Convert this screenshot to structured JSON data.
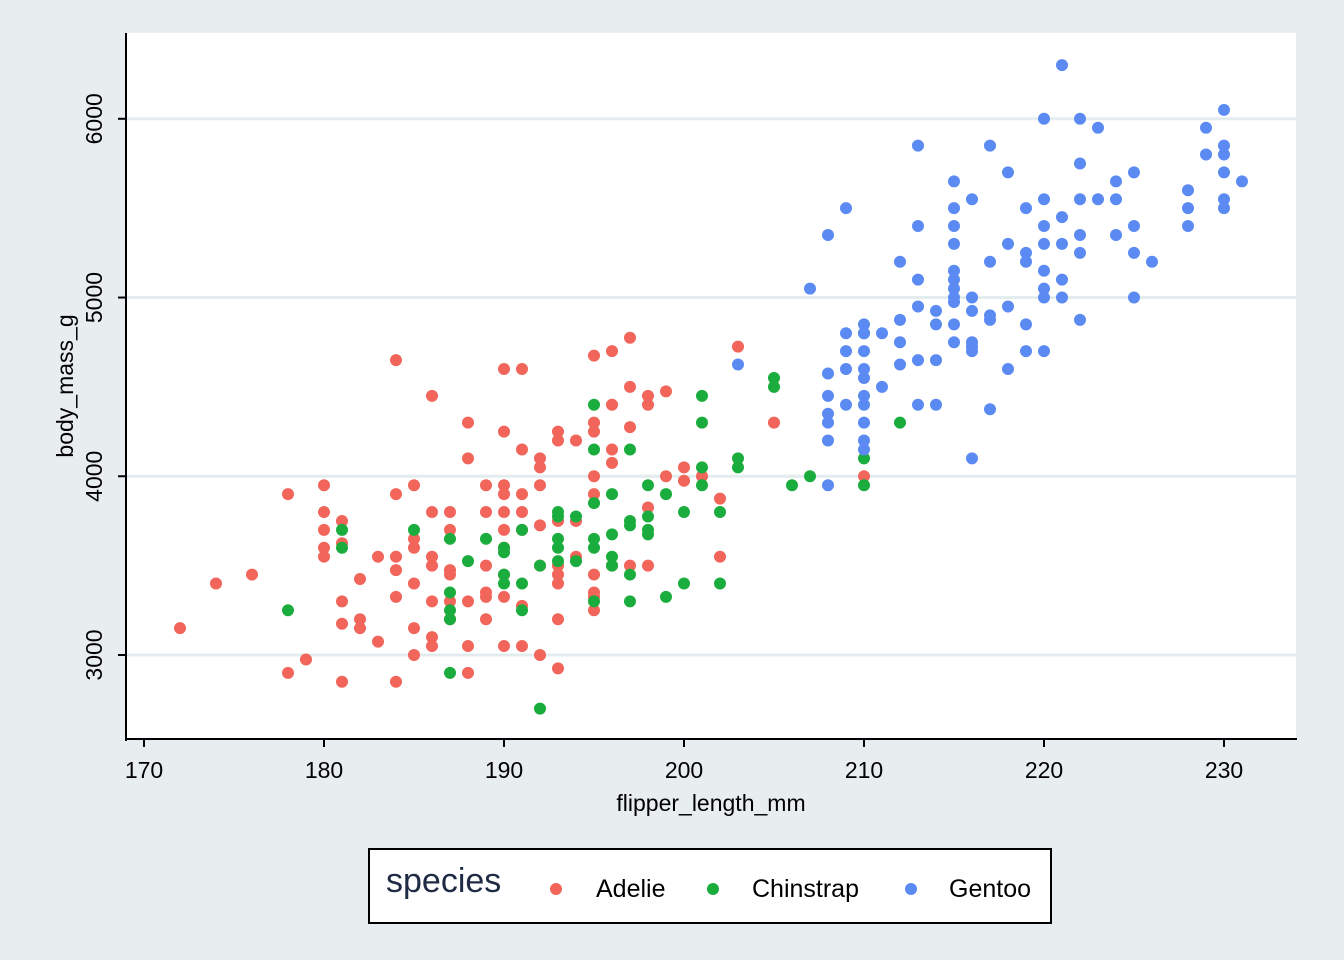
{
  "colors": {
    "Adelie": "#f1655a",
    "Chinstrap": "#1aad3d",
    "Gentoo": "#5b8bf2",
    "background": "#e8eef0",
    "panel": "#ffffff",
    "gridline": "#e3ecef"
  },
  "chart_data": {
    "type": "scatter",
    "xlabel": "flipper_length_mm",
    "ylabel": "body_mass_g",
    "xlim": [
      169,
      234
    ],
    "ylim": [
      2530,
      6480
    ],
    "xticks": [
      170,
      180,
      190,
      200,
      210,
      220,
      230
    ],
    "yticks": [
      3000,
      4000,
      5000,
      6000
    ],
    "grid": "horizontal",
    "legend": {
      "title": "species",
      "placement": "bottom",
      "entries": [
        "Adelie",
        "Chinstrap",
        "Gentoo"
      ]
    },
    "series": [
      {
        "name": "Adelie",
        "points": [
          [
            172,
            3150
          ],
          [
            174,
            3400
          ],
          [
            176,
            3450
          ],
          [
            178,
            3900
          ],
          [
            178,
            2900
          ],
          [
            179,
            2975
          ],
          [
            180,
            3950
          ],
          [
            180,
            3800
          ],
          [
            180,
            3700
          ],
          [
            180,
            3600
          ],
          [
            180,
            3550
          ],
          [
            181,
            3750
          ],
          [
            181,
            3625
          ],
          [
            181,
            3300
          ],
          [
            181,
            3175
          ],
          [
            181,
            2850
          ],
          [
            182,
            3425
          ],
          [
            182,
            3200
          ],
          [
            182,
            3150
          ],
          [
            183,
            3550
          ],
          [
            183,
            3075
          ],
          [
            184,
            4650
          ],
          [
            184,
            3900
          ],
          [
            184,
            3550
          ],
          [
            184,
            3475
          ],
          [
            184,
            3325
          ],
          [
            184,
            2850
          ],
          [
            185,
            3950
          ],
          [
            185,
            3650
          ],
          [
            185,
            3600
          ],
          [
            185,
            3400
          ],
          [
            185,
            3150
          ],
          [
            185,
            3000
          ],
          [
            186,
            4450
          ],
          [
            186,
            3800
          ],
          [
            186,
            3550
          ],
          [
            186,
            3500
          ],
          [
            186,
            3300
          ],
          [
            186,
            3100
          ],
          [
            186,
            3050
          ],
          [
            187,
            3800
          ],
          [
            187,
            3700
          ],
          [
            187,
            3475
          ],
          [
            187,
            3450
          ],
          [
            187,
            3300
          ],
          [
            187,
            3200
          ],
          [
            188,
            4300
          ],
          [
            188,
            4100
          ],
          [
            188,
            3300
          ],
          [
            188,
            3050
          ],
          [
            188,
            2900
          ],
          [
            189,
            3950
          ],
          [
            189,
            3800
          ],
          [
            189,
            3500
          ],
          [
            189,
            3350
          ],
          [
            189,
            3325
          ],
          [
            189,
            3200
          ],
          [
            190,
            4600
          ],
          [
            190,
            4250
          ],
          [
            190,
            3950
          ],
          [
            190,
            3900
          ],
          [
            190,
            3800
          ],
          [
            190,
            3700
          ],
          [
            190,
            3600
          ],
          [
            190,
            3450
          ],
          [
            190,
            3325
          ],
          [
            190,
            3050
          ],
          [
            191,
            4600
          ],
          [
            191,
            4150
          ],
          [
            191,
            3900
          ],
          [
            191,
            3800
          ],
          [
            191,
            3700
          ],
          [
            191,
            3275
          ],
          [
            191,
            3050
          ],
          [
            192,
            4100
          ],
          [
            192,
            4050
          ],
          [
            192,
            3950
          ],
          [
            192,
            3725
          ],
          [
            192,
            3500
          ],
          [
            192,
            3000
          ],
          [
            193,
            4250
          ],
          [
            193,
            4200
          ],
          [
            193,
            3750
          ],
          [
            193,
            3500
          ],
          [
            193,
            3450
          ],
          [
            193,
            3400
          ],
          [
            193,
            3200
          ],
          [
            193,
            2925
          ],
          [
            194,
            4200
          ],
          [
            194,
            3750
          ],
          [
            194,
            3550
          ],
          [
            195,
            4675
          ],
          [
            195,
            4300
          ],
          [
            195,
            4250
          ],
          [
            195,
            4000
          ],
          [
            195,
            3900
          ],
          [
            195,
            3450
          ],
          [
            195,
            3350
          ],
          [
            195,
            3325
          ],
          [
            195,
            3250
          ],
          [
            196,
            4700
          ],
          [
            196,
            4400
          ],
          [
            196,
            4150
          ],
          [
            196,
            4075
          ],
          [
            196,
            3500
          ],
          [
            197,
            4775
          ],
          [
            197,
            4500
          ],
          [
            197,
            4275
          ],
          [
            197,
            3500
          ],
          [
            198,
            4450
          ],
          [
            198,
            4400
          ],
          [
            198,
            3825
          ],
          [
            198,
            3500
          ],
          [
            199,
            4475
          ],
          [
            199,
            4000
          ],
          [
            200,
            4050
          ],
          [
            200,
            3975
          ],
          [
            201,
            4000
          ],
          [
            202,
            3875
          ],
          [
            202,
            3550
          ],
          [
            203,
            4725
          ],
          [
            205,
            4300
          ],
          [
            210,
            4000
          ]
        ]
      },
      {
        "name": "Chinstrap",
        "points": [
          [
            178,
            3250
          ],
          [
            181,
            3700
          ],
          [
            181,
            3600
          ],
          [
            185,
            3700
          ],
          [
            187,
            3650
          ],
          [
            187,
            3350
          ],
          [
            187,
            3250
          ],
          [
            187,
            3200
          ],
          [
            187,
            2900
          ],
          [
            188,
            3525
          ],
          [
            189,
            3650
          ],
          [
            190,
            3600
          ],
          [
            190,
            3575
          ],
          [
            190,
            3450
          ],
          [
            190,
            3400
          ],
          [
            191,
            3700
          ],
          [
            191,
            3400
          ],
          [
            191,
            3250
          ],
          [
            192,
            3500
          ],
          [
            192,
            2700
          ],
          [
            193,
            3800
          ],
          [
            193,
            3775
          ],
          [
            193,
            3650
          ],
          [
            193,
            3600
          ],
          [
            193,
            3525
          ],
          [
            194,
            3775
          ],
          [
            194,
            3525
          ],
          [
            195,
            4400
          ],
          [
            195,
            4150
          ],
          [
            195,
            3850
          ],
          [
            195,
            3650
          ],
          [
            195,
            3600
          ],
          [
            195,
            3300
          ],
          [
            196,
            3900
          ],
          [
            196,
            3675
          ],
          [
            196,
            3550
          ],
          [
            196,
            3500
          ],
          [
            197,
            4150
          ],
          [
            197,
            3750
          ],
          [
            197,
            3725
          ],
          [
            197,
            3450
          ],
          [
            197,
            3300
          ],
          [
            198,
            3950
          ],
          [
            198,
            3775
          ],
          [
            198,
            3700
          ],
          [
            198,
            3675
          ],
          [
            199,
            3900
          ],
          [
            199,
            3325
          ],
          [
            200,
            3800
          ],
          [
            200,
            3400
          ],
          [
            201,
            4450
          ],
          [
            201,
            4300
          ],
          [
            201,
            4050
          ],
          [
            201,
            3950
          ],
          [
            202,
            3800
          ],
          [
            202,
            3400
          ],
          [
            203,
            4100
          ],
          [
            203,
            4050
          ],
          [
            205,
            4550
          ],
          [
            205,
            4500
          ],
          [
            206,
            3950
          ],
          [
            207,
            4000
          ],
          [
            210,
            4800
          ],
          [
            210,
            4100
          ],
          [
            210,
            3950
          ],
          [
            212,
            4300
          ]
        ]
      },
      {
        "name": "Gentoo",
        "points": [
          [
            203,
            4625
          ],
          [
            207,
            5050
          ],
          [
            208,
            5350
          ],
          [
            208,
            4575
          ],
          [
            208,
            4450
          ],
          [
            208,
            4350
          ],
          [
            208,
            4300
          ],
          [
            208,
            4200
          ],
          [
            208,
            3950
          ],
          [
            209,
            5500
          ],
          [
            209,
            4800
          ],
          [
            209,
            4700
          ],
          [
            209,
            4600
          ],
          [
            209,
            4400
          ],
          [
            210,
            4850
          ],
          [
            210,
            4800
          ],
          [
            210,
            4700
          ],
          [
            210,
            4600
          ],
          [
            210,
            4550
          ],
          [
            210,
            4450
          ],
          [
            210,
            4400
          ],
          [
            210,
            4300
          ],
          [
            210,
            4200
          ],
          [
            210,
            4150
          ],
          [
            211,
            4800
          ],
          [
            211,
            4500
          ],
          [
            212,
            5200
          ],
          [
            212,
            4875
          ],
          [
            212,
            4750
          ],
          [
            212,
            4625
          ],
          [
            213,
            5850
          ],
          [
            213,
            5400
          ],
          [
            213,
            5100
          ],
          [
            213,
            4950
          ],
          [
            213,
            4650
          ],
          [
            213,
            4400
          ],
          [
            214,
            4925
          ],
          [
            214,
            4850
          ],
          [
            214,
            4650
          ],
          [
            214,
            4400
          ],
          [
            215,
            5650
          ],
          [
            215,
            5500
          ],
          [
            215,
            5400
          ],
          [
            215,
            5300
          ],
          [
            215,
            5150
          ],
          [
            215,
            5100
          ],
          [
            215,
            5050
          ],
          [
            215,
            5000
          ],
          [
            215,
            4975
          ],
          [
            215,
            4850
          ],
          [
            215,
            4750
          ],
          [
            216,
            5550
          ],
          [
            216,
            5000
          ],
          [
            216,
            4925
          ],
          [
            216,
            4750
          ],
          [
            216,
            4725
          ],
          [
            216,
            4700
          ],
          [
            216,
            4100
          ],
          [
            217,
            5850
          ],
          [
            217,
            5200
          ],
          [
            217,
            4900
          ],
          [
            217,
            4875
          ],
          [
            217,
            4375
          ],
          [
            218,
            5700
          ],
          [
            218,
            5300
          ],
          [
            218,
            4950
          ],
          [
            218,
            4600
          ],
          [
            219,
            5500
          ],
          [
            219,
            5250
          ],
          [
            219,
            5200
          ],
          [
            219,
            4850
          ],
          [
            219,
            4700
          ],
          [
            220,
            6000
          ],
          [
            220,
            5550
          ],
          [
            220,
            5400
          ],
          [
            220,
            5300
          ],
          [
            220,
            5150
          ],
          [
            220,
            5050
          ],
          [
            220,
            5000
          ],
          [
            220,
            4700
          ],
          [
            221,
            6300
          ],
          [
            221,
            5450
          ],
          [
            221,
            5300
          ],
          [
            221,
            5100
          ],
          [
            221,
            5000
          ],
          [
            222,
            6000
          ],
          [
            222,
            5750
          ],
          [
            222,
            5550
          ],
          [
            222,
            5350
          ],
          [
            222,
            5250
          ],
          [
            222,
            4875
          ],
          [
            223,
            5950
          ],
          [
            223,
            5550
          ],
          [
            224,
            5650
          ],
          [
            224,
            5550
          ],
          [
            224,
            5350
          ],
          [
            225,
            5700
          ],
          [
            225,
            5400
          ],
          [
            225,
            5250
          ],
          [
            225,
            5000
          ],
          [
            226,
            5200
          ],
          [
            228,
            5600
          ],
          [
            228,
            5500
          ],
          [
            228,
            5400
          ],
          [
            229,
            5950
          ],
          [
            229,
            5800
          ],
          [
            230,
            6050
          ],
          [
            230,
            5850
          ],
          [
            230,
            5800
          ],
          [
            230,
            5700
          ],
          [
            230,
            5550
          ],
          [
            230,
            5500
          ],
          [
            231,
            5650
          ]
        ]
      }
    ]
  }
}
